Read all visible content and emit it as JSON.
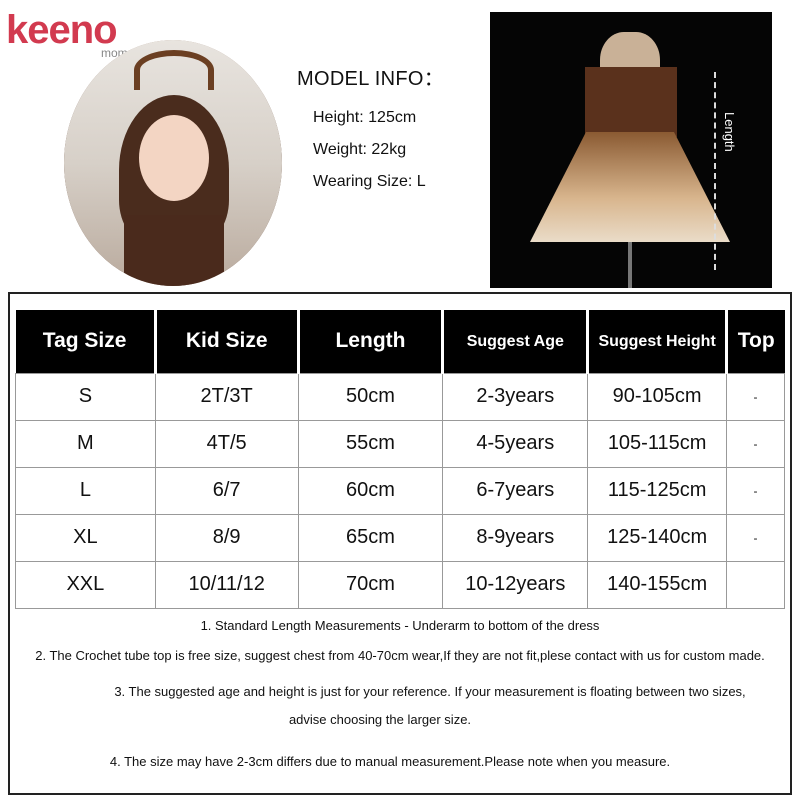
{
  "brand": {
    "logo_text": "keeno",
    "logo_sub": "momay"
  },
  "model_info": {
    "title": "MODEL INFO：",
    "height": "Height: 125cm",
    "weight": "Weight: 22kg",
    "wearing_size": "Wearing Size: L"
  },
  "dress_photo": {
    "length_label": "Length"
  },
  "size_table": {
    "headers": [
      "Tag Size",
      "Kid Size",
      "Length",
      "Suggest Age",
      "Suggest Height",
      "Top"
    ],
    "rows": [
      [
        "S",
        "2T/3T",
        "50cm",
        "2-3years",
        "90-105cm",
        "-"
      ],
      [
        "M",
        "4T/5",
        "55cm",
        "4-5years",
        "105-115cm",
        "-"
      ],
      [
        "L",
        "6/7",
        "60cm",
        "6-7years",
        "115-125cm",
        "-"
      ],
      [
        "XL",
        "8/9",
        "65cm",
        "8-9years",
        "125-140cm",
        "-"
      ],
      [
        "XXL",
        "10/11/12",
        "70cm",
        "10-12years",
        "140-155cm",
        ""
      ]
    ]
  },
  "notes": [
    "1. Standard Length Measurements - Underarm to bottom of the dress",
    "2. The Crochet tube top is free size, suggest chest from 40-70cm wear,If they are not fit,plese contact with us for custom made.",
    "3. The suggested age and height is just for your reference. If your measurement is floating between two sizes,",
    "advise choosing the  larger size.",
    "4. The size may have 2-3cm differs due to manual measurement.Please note when you measure."
  ]
}
